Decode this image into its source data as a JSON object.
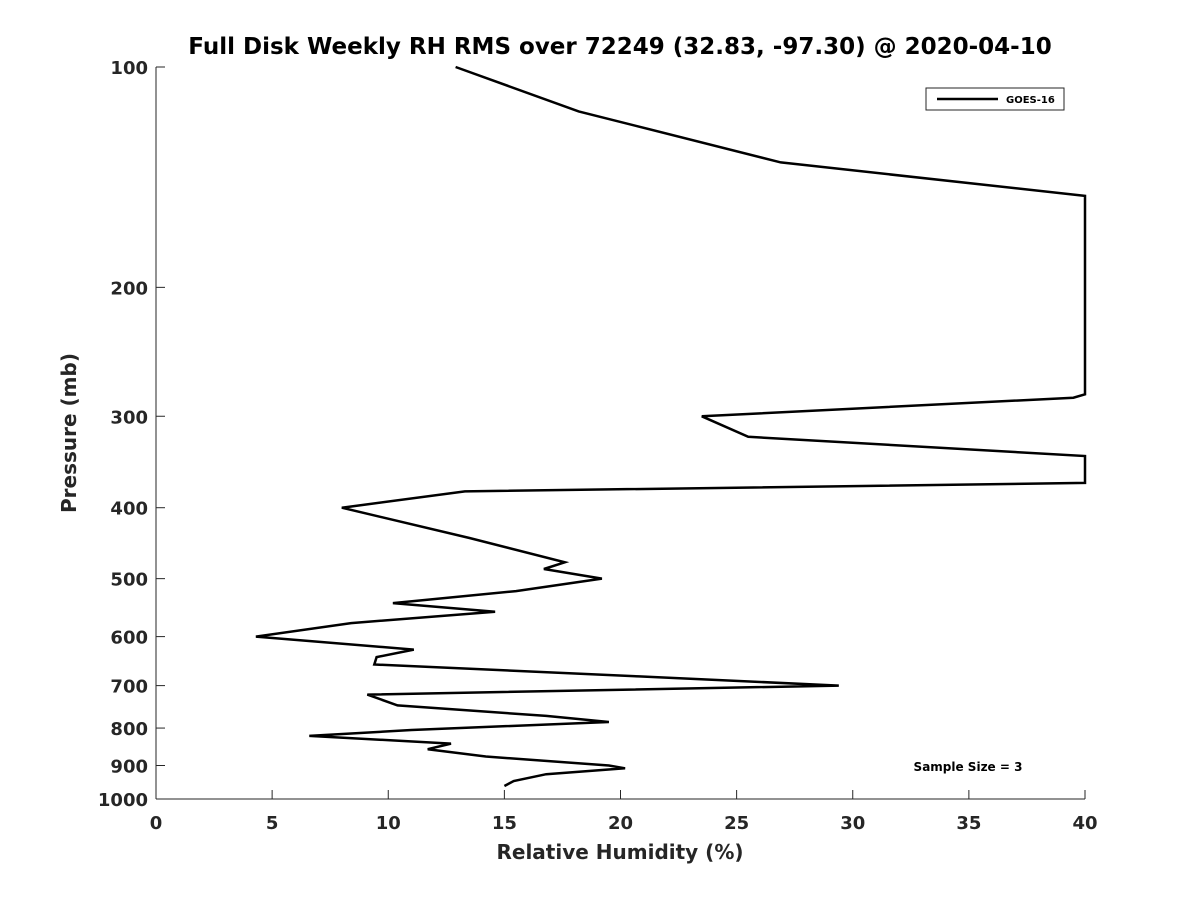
{
  "chart_data": {
    "type": "line",
    "title": "Full Disk Weekly RH RMS over 72249 (32.83, -97.30) @ 2020-04-10",
    "xlabel": "Relative Humidity (%)",
    "ylabel": "Pressure (mb)",
    "xlim": [
      0,
      40
    ],
    "ylim": [
      100,
      1000
    ],
    "yscale": "log",
    "y_reversed": true,
    "x_ticks": [
      "0",
      "5",
      "10",
      "15",
      "20",
      "25",
      "30",
      "35",
      "40"
    ],
    "y_ticks": [
      "100",
      "200",
      "300",
      "400",
      "500",
      "600",
      "700",
      "800",
      "900",
      "1000"
    ],
    "grid": false,
    "legend_position": "top-right",
    "annotation": "Sample Size = 3",
    "series": [
      {
        "name": "GOES-16",
        "color": "#000000",
        "points": [
          [
            12.9,
            100
          ],
          [
            18.2,
            115
          ],
          [
            26.9,
            135
          ],
          [
            40.0,
            150
          ],
          [
            40.0,
            280
          ],
          [
            39.5,
            283
          ],
          [
            23.5,
            300
          ],
          [
            25.5,
            320
          ],
          [
            40.0,
            340
          ],
          [
            40.0,
            370
          ],
          [
            13.3,
            380
          ],
          [
            8.0,
            400
          ],
          [
            13.5,
            440
          ],
          [
            17.6,
            475
          ],
          [
            16.7,
            485
          ],
          [
            19.2,
            500
          ],
          [
            15.5,
            520
          ],
          [
            10.2,
            540
          ],
          [
            14.6,
            555
          ],
          [
            8.4,
            575
          ],
          [
            4.3,
            600
          ],
          [
            11.1,
            625
          ],
          [
            9.5,
            640
          ],
          [
            9.4,
            655
          ],
          [
            20.8,
            680
          ],
          [
            29.4,
            700
          ],
          [
            9.1,
            720
          ],
          [
            10.4,
            745
          ],
          [
            16.8,
            770
          ],
          [
            19.5,
            785
          ],
          [
            11.0,
            805
          ],
          [
            6.6,
            820
          ],
          [
            12.7,
            840
          ],
          [
            11.7,
            855
          ],
          [
            14.2,
            875
          ],
          [
            19.5,
            900
          ],
          [
            20.2,
            908
          ],
          [
            16.8,
            925
          ],
          [
            15.4,
            945
          ],
          [
            15.0,
            960
          ]
        ]
      }
    ]
  }
}
